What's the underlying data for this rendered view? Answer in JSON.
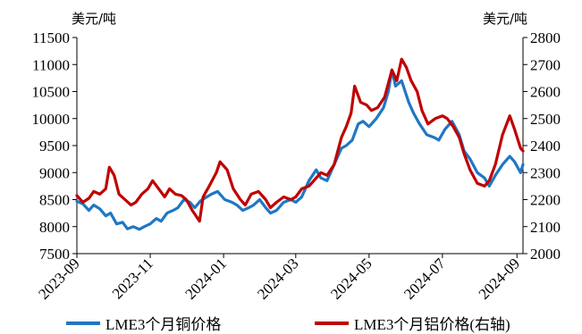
{
  "chart_data": {
    "type": "line",
    "left_axis_unit": "美元/吨",
    "right_axis_unit": "美元/吨",
    "y_left_range": [
      7500,
      11500
    ],
    "y_left_ticks": [
      7500,
      8000,
      8500,
      9000,
      9500,
      10000,
      10500,
      11000,
      11500
    ],
    "y_right_range": [
      2000,
      2800
    ],
    "y_right_ticks": [
      2000,
      2100,
      2200,
      2300,
      2400,
      2500,
      2600,
      2700,
      2800
    ],
    "x_ticks": [
      "2023-09",
      "2023-11",
      "2024-01",
      "2024-03",
      "2024-05",
      "2024-07",
      "2024-09"
    ],
    "x_range": [
      "2023-09-01",
      "2024-09-06"
    ],
    "grid": false,
    "legend_position": "bottom",
    "series": [
      {
        "name": "LME3个月铜价格",
        "axis": "left",
        "color": "#1F77C4",
        "points": [
          [
            "2023-09-01",
            8470
          ],
          [
            "2023-09-06",
            8420
          ],
          [
            "2023-09-11",
            8300
          ],
          [
            "2023-09-15",
            8400
          ],
          [
            "2023-09-20",
            8330
          ],
          [
            "2023-09-25",
            8200
          ],
          [
            "2023-09-29",
            8250
          ],
          [
            "2023-10-04",
            8050
          ],
          [
            "2023-10-09",
            8080
          ],
          [
            "2023-10-13",
            7960
          ],
          [
            "2023-10-18",
            8000
          ],
          [
            "2023-10-23",
            7950
          ],
          [
            "2023-10-27",
            8000
          ],
          [
            "2023-11-01",
            8050
          ],
          [
            "2023-11-06",
            8150
          ],
          [
            "2023-11-10",
            8100
          ],
          [
            "2023-11-15",
            8250
          ],
          [
            "2023-11-20",
            8300
          ],
          [
            "2023-11-24",
            8350
          ],
          [
            "2023-11-29",
            8500
          ],
          [
            "2023-12-04",
            8450
          ],
          [
            "2023-12-08",
            8350
          ],
          [
            "2023-12-13",
            8480
          ],
          [
            "2023-12-18",
            8550
          ],
          [
            "2023-12-22",
            8600
          ],
          [
            "2023-12-27",
            8650
          ],
          [
            "2024-01-02",
            8500
          ],
          [
            "2024-01-08",
            8450
          ],
          [
            "2024-01-12",
            8400
          ],
          [
            "2024-01-17",
            8300
          ],
          [
            "2024-01-22",
            8350
          ],
          [
            "2024-01-26",
            8400
          ],
          [
            "2024-01-31",
            8500
          ],
          [
            "2024-02-05",
            8350
          ],
          [
            "2024-02-09",
            8250
          ],
          [
            "2024-02-14",
            8300
          ],
          [
            "2024-02-20",
            8450
          ],
          [
            "2024-02-26",
            8500
          ],
          [
            "2024-03-01",
            8450
          ],
          [
            "2024-03-06",
            8550
          ],
          [
            "2024-03-12",
            8850
          ],
          [
            "2024-03-18",
            9050
          ],
          [
            "2024-03-22",
            8900
          ],
          [
            "2024-03-27",
            8850
          ],
          [
            "2024-04-02",
            9150
          ],
          [
            "2024-04-08",
            9450
          ],
          [
            "2024-04-12",
            9500
          ],
          [
            "2024-04-17",
            9600
          ],
          [
            "2024-04-22",
            9900
          ],
          [
            "2024-04-26",
            9950
          ],
          [
            "2024-05-01",
            9850
          ],
          [
            "2024-05-07",
            10000
          ],
          [
            "2024-05-13",
            10200
          ],
          [
            "2024-05-17",
            10500
          ],
          [
            "2024-05-20",
            10900
          ],
          [
            "2024-05-23",
            10600
          ],
          [
            "2024-05-28",
            10700
          ],
          [
            "2024-06-03",
            10300
          ],
          [
            "2024-06-07",
            10100
          ],
          [
            "2024-06-12",
            9900
          ],
          [
            "2024-06-18",
            9700
          ],
          [
            "2024-06-24",
            9650
          ],
          [
            "2024-06-28",
            9600
          ],
          [
            "2024-07-03",
            9800
          ],
          [
            "2024-07-09",
            9950
          ],
          [
            "2024-07-15",
            9700
          ],
          [
            "2024-07-19",
            9400
          ],
          [
            "2024-07-24",
            9250
          ],
          [
            "2024-07-30",
            9000
          ],
          [
            "2024-08-05",
            8900
          ],
          [
            "2024-08-09",
            8750
          ],
          [
            "2024-08-14",
            8950
          ],
          [
            "2024-08-20",
            9150
          ],
          [
            "2024-08-26",
            9300
          ],
          [
            "2024-08-30",
            9200
          ],
          [
            "2024-09-04",
            9000
          ],
          [
            "2024-09-06",
            9150
          ]
        ]
      },
      {
        "name": "LME3个月铝价格(右轴)",
        "axis": "right",
        "color": "#C00000",
        "points": [
          [
            "2023-09-01",
            2215
          ],
          [
            "2023-09-06",
            2190
          ],
          [
            "2023-09-11",
            2205
          ],
          [
            "2023-09-15",
            2230
          ],
          [
            "2023-09-20",
            2220
          ],
          [
            "2023-09-25",
            2240
          ],
          [
            "2023-09-28",
            2320
          ],
          [
            "2023-10-02",
            2290
          ],
          [
            "2023-10-06",
            2220
          ],
          [
            "2023-10-11",
            2200
          ],
          [
            "2023-10-16",
            2180
          ],
          [
            "2023-10-20",
            2190
          ],
          [
            "2023-10-25",
            2220
          ],
          [
            "2023-10-30",
            2240
          ],
          [
            "2023-11-03",
            2270
          ],
          [
            "2023-11-08",
            2240
          ],
          [
            "2023-11-13",
            2210
          ],
          [
            "2023-11-17",
            2240
          ],
          [
            "2023-11-22",
            2220
          ],
          [
            "2023-11-27",
            2215
          ],
          [
            "2023-12-01",
            2200
          ],
          [
            "2023-12-06",
            2160
          ],
          [
            "2023-12-12",
            2120
          ],
          [
            "2023-12-15",
            2210
          ],
          [
            "2023-12-20",
            2250
          ],
          [
            "2023-12-26",
            2300
          ],
          [
            "2023-12-29",
            2340
          ],
          [
            "2024-01-04",
            2310
          ],
          [
            "2024-01-09",
            2240
          ],
          [
            "2024-01-15",
            2200
          ],
          [
            "2024-01-19",
            2180
          ],
          [
            "2024-01-24",
            2220
          ],
          [
            "2024-01-30",
            2230
          ],
          [
            "2024-02-05",
            2200
          ],
          [
            "2024-02-09",
            2170
          ],
          [
            "2024-02-14",
            2190
          ],
          [
            "2024-02-20",
            2210
          ],
          [
            "2024-02-26",
            2200
          ],
          [
            "2024-03-01",
            2210
          ],
          [
            "2024-03-06",
            2240
          ],
          [
            "2024-03-12",
            2250
          ],
          [
            "2024-03-18",
            2280
          ],
          [
            "2024-03-22",
            2300
          ],
          [
            "2024-03-27",
            2290
          ],
          [
            "2024-04-02",
            2330
          ],
          [
            "2024-04-08",
            2430
          ],
          [
            "2024-04-12",
            2470
          ],
          [
            "2024-04-16",
            2520
          ],
          [
            "2024-04-19",
            2620
          ],
          [
            "2024-04-24",
            2560
          ],
          [
            "2024-04-29",
            2550
          ],
          [
            "2024-05-03",
            2530
          ],
          [
            "2024-05-08",
            2540
          ],
          [
            "2024-05-14",
            2580
          ],
          [
            "2024-05-20",
            2680
          ],
          [
            "2024-05-24",
            2640
          ],
          [
            "2024-05-28",
            2720
          ],
          [
            "2024-06-01",
            2690
          ],
          [
            "2024-06-05",
            2640
          ],
          [
            "2024-06-10",
            2600
          ],
          [
            "2024-06-14",
            2530
          ],
          [
            "2024-06-19",
            2480
          ],
          [
            "2024-06-25",
            2500
          ],
          [
            "2024-07-01",
            2510
          ],
          [
            "2024-07-05",
            2500
          ],
          [
            "2024-07-10",
            2470
          ],
          [
            "2024-07-15",
            2430
          ],
          [
            "2024-07-19",
            2370
          ],
          [
            "2024-07-24",
            2310
          ],
          [
            "2024-07-30",
            2260
          ],
          [
            "2024-08-05",
            2250
          ],
          [
            "2024-08-09",
            2270
          ],
          [
            "2024-08-14",
            2330
          ],
          [
            "2024-08-20",
            2440
          ],
          [
            "2024-08-26",
            2510
          ],
          [
            "2024-08-30",
            2460
          ],
          [
            "2024-09-04",
            2390
          ],
          [
            "2024-09-06",
            2380
          ]
        ]
      }
    ]
  }
}
